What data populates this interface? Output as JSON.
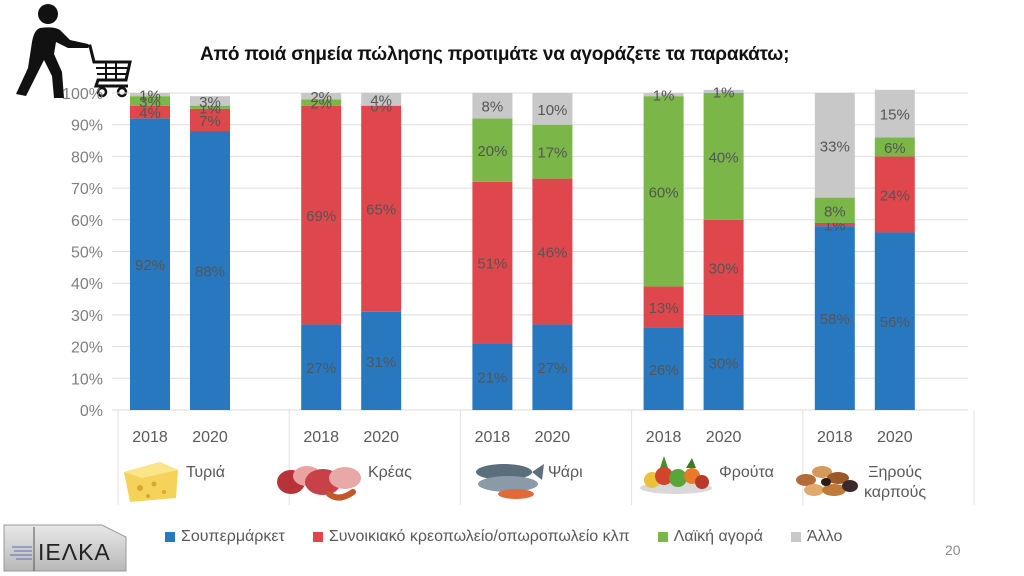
{
  "slide": {
    "title": "Από ποιά σημεία πώλησης προτιμάτε να αγοράζετε τα παρακάτω;",
    "page_number": "20",
    "logo_text": "ΙΕΛΚΑ",
    "icons": {
      "shopper": "person-with-shopping-cart-icon",
      "logo": "ielka-logo"
    }
  },
  "chart_data": {
    "type": "bar",
    "stacked": true,
    "percent_stacked": true,
    "title": "Από ποιά σημεία πώλησης προτιμάτε να αγοράζετε τα παρακάτω;",
    "xlabel": "",
    "ylabel": "",
    "ylim": [
      0,
      100
    ],
    "yticks": [
      "0%",
      "10%",
      "20%",
      "30%",
      "40%",
      "50%",
      "60%",
      "70%",
      "80%",
      "90%",
      "100%"
    ],
    "grid": true,
    "legend_position": "bottom",
    "groups": [
      {
        "name": "Τυριά",
        "image": "cheese-image",
        "years": [
          "2018",
          "2020"
        ]
      },
      {
        "name": "Κρέας",
        "image": "meat-image",
        "years": [
          "2018",
          "2020"
        ]
      },
      {
        "name": "Ψάρι",
        "image": "fish-image",
        "years": [
          "2018",
          "2020"
        ]
      },
      {
        "name": "Φρούτα",
        "image": "fruits-image",
        "years": [
          "2018",
          "2020"
        ]
      },
      {
        "name": "Ξηρούς καρπούς",
        "image": "nuts-image",
        "years": [
          "2018",
          "2020"
        ]
      }
    ],
    "categories": [
      "Τυριά 2018",
      "Τυριά 2020",
      "Κρέας 2018",
      "Κρέας 2020",
      "Ψάρι 2018",
      "Ψάρι 2020",
      "Φρούτα 2018",
      "Φρούτα 2020",
      "Ξηρούς καρπούς 2018",
      "Ξηρούς καρπούς 2020"
    ],
    "series": [
      {
        "name": "Σουπερμάρκετ",
        "color": "#2878c0",
        "values": [
          92,
          88,
          27,
          31,
          21,
          27,
          26,
          30,
          58,
          56
        ]
      },
      {
        "name": "Συνοικιακό κρεοπωλείο/οπωροπωλείο κλπ",
        "color": "#e0474c",
        "values": [
          4,
          7,
          69,
          65,
          51,
          46,
          13,
          30,
          1,
          24
        ]
      },
      {
        "name": "Λαϊκή αγορά",
        "color": "#7ab648",
        "values": [
          3,
          1,
          2,
          0,
          20,
          17,
          60,
          40,
          8,
          6
        ]
      },
      {
        "name": "Άλλο",
        "color": "#c8c8c8",
        "values": [
          1,
          3,
          2,
          4,
          8,
          10,
          1,
          1,
          33,
          15
        ]
      }
    ]
  }
}
